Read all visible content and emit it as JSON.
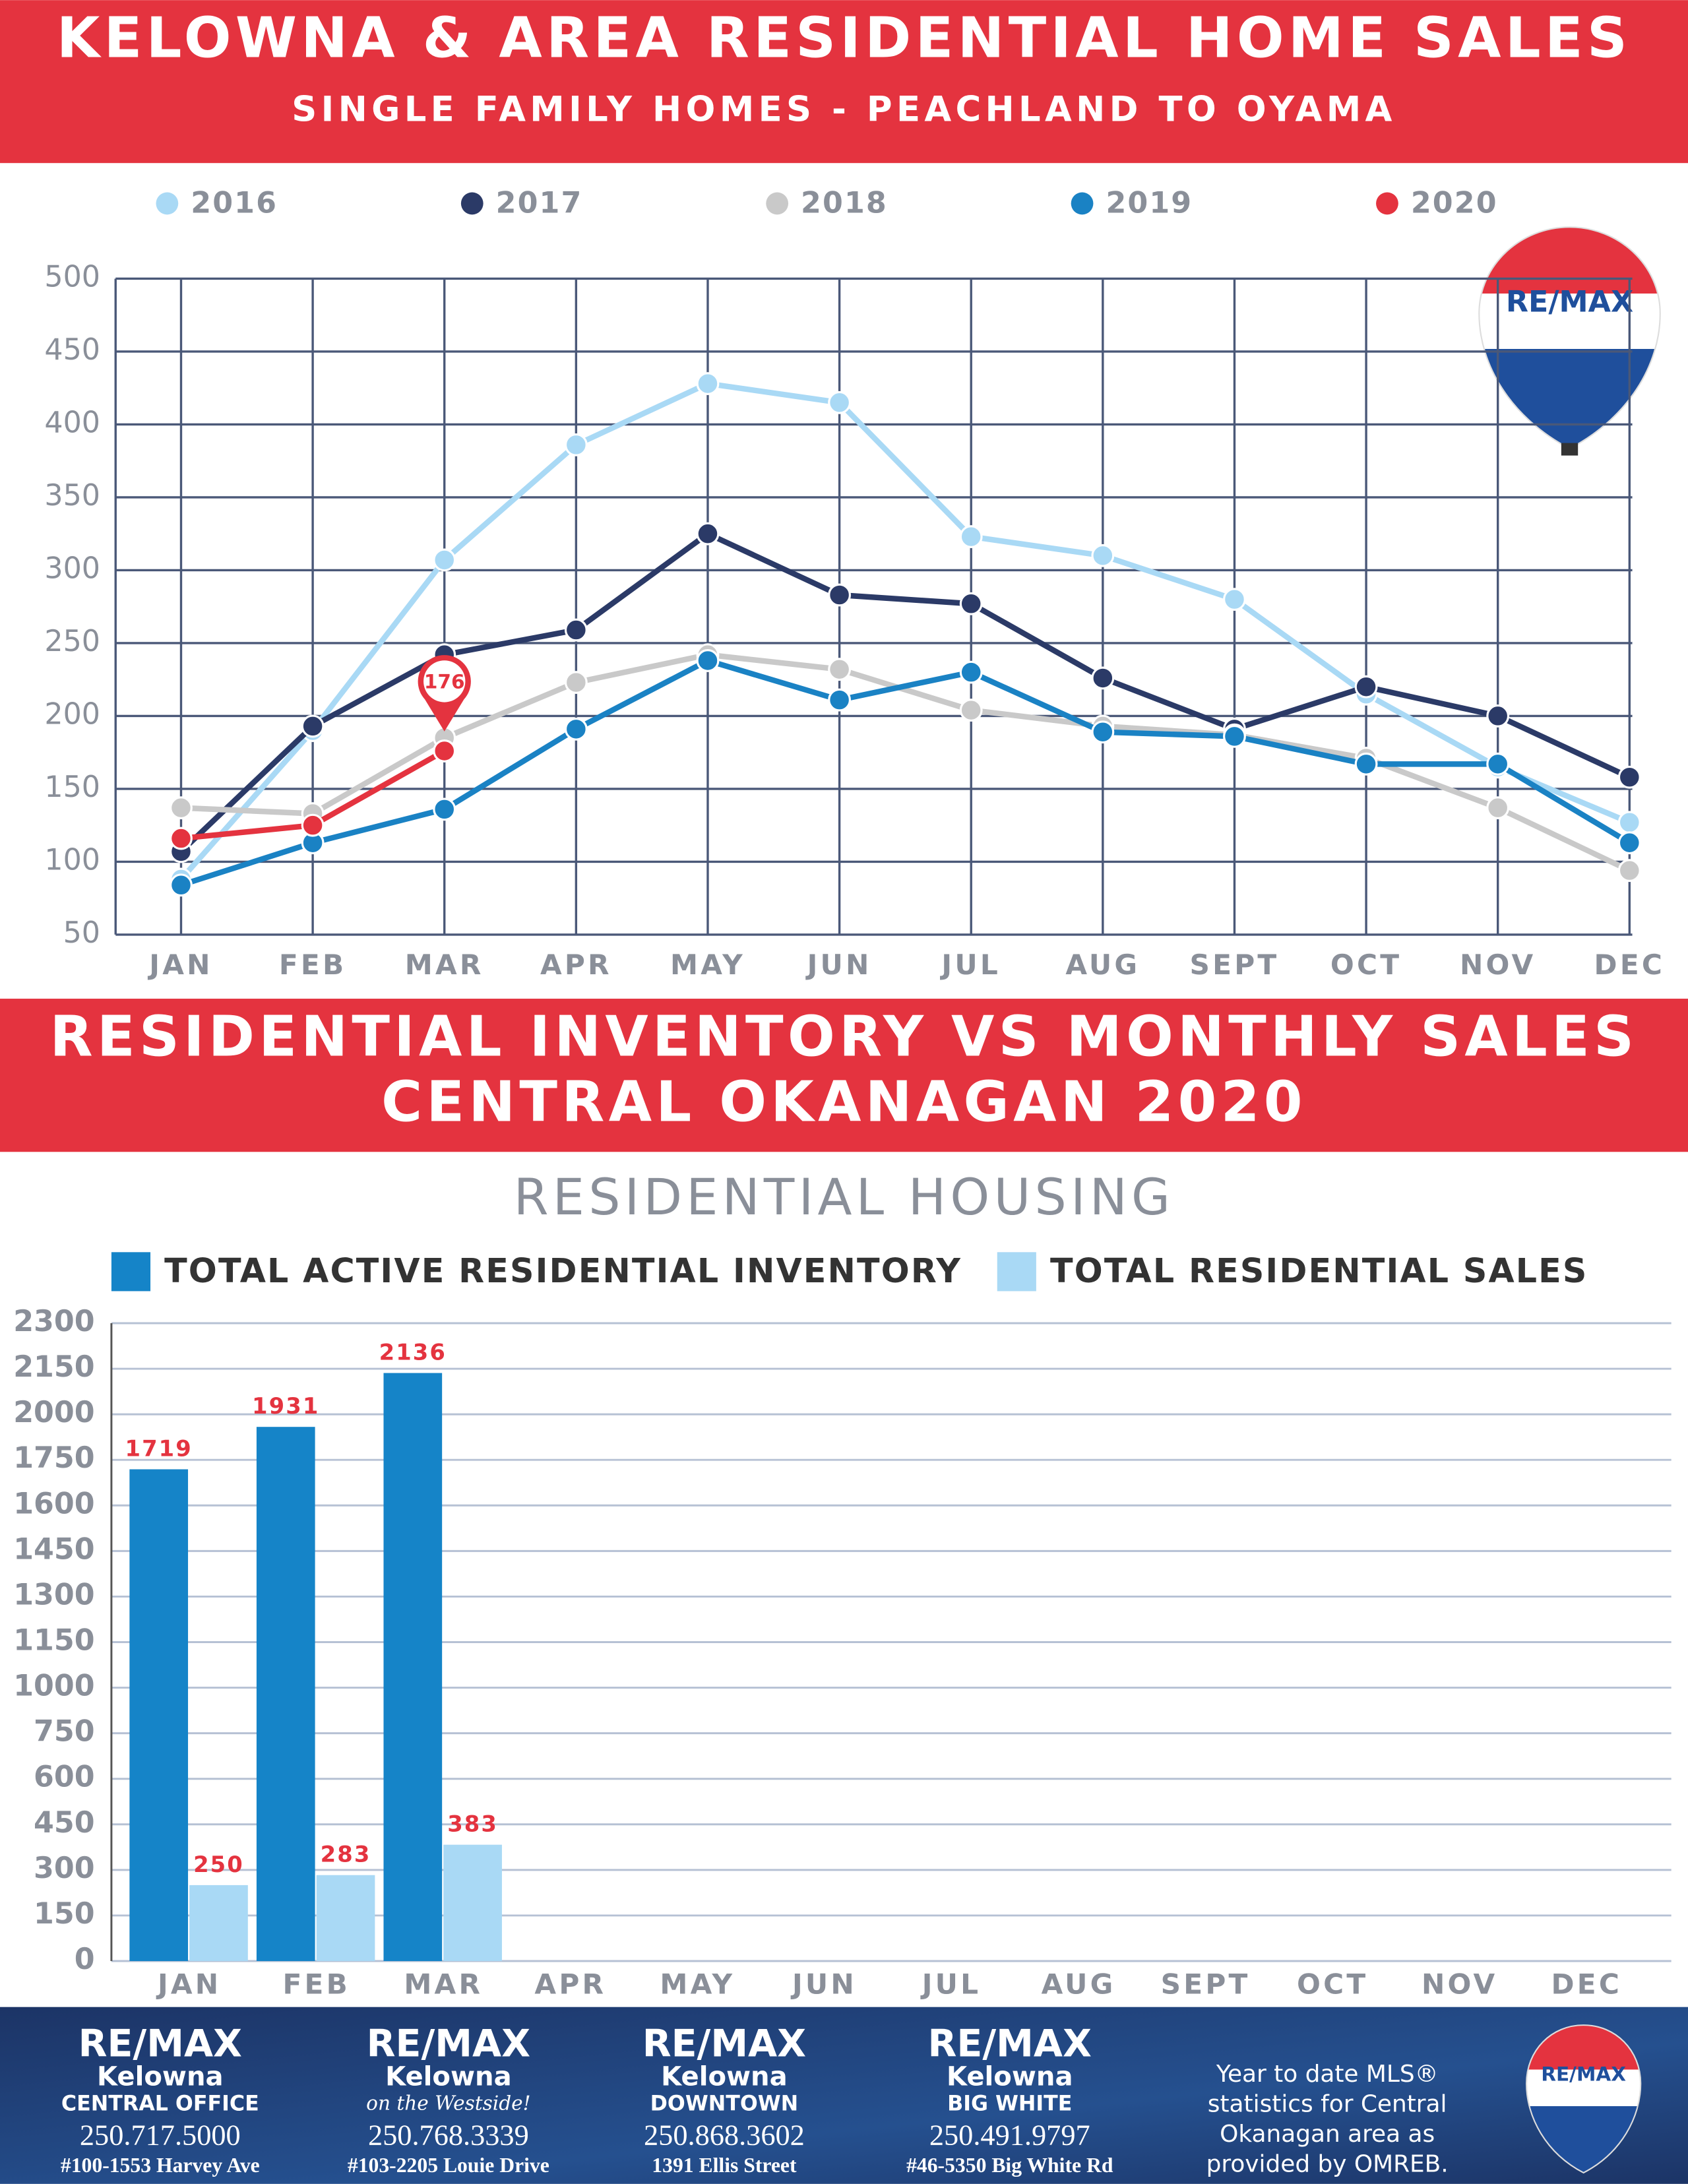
{
  "chart_data": [
    {
      "type": "line",
      "title": "KELOWNA & AREA RESIDENTIAL HOME SALES",
      "subtitle": "SINGLE FAMILY HOMES - PEACHLAND TO OYAMA",
      "categories": [
        "JAN",
        "FEB",
        "MAR",
        "APR",
        "MAY",
        "JUN",
        "JUL",
        "AUG",
        "SEPT",
        "OCT",
        "NOV",
        "DEC"
      ],
      "series": [
        {
          "name": "2016",
          "color": "#a9d9f5",
          "values": [
            88,
            190,
            307,
            386,
            428,
            415,
            323,
            310,
            280,
            215,
            165,
            127
          ]
        },
        {
          "name": "2017",
          "color": "#2b3a67",
          "values": [
            107,
            193,
            242,
            259,
            325,
            283,
            277,
            226,
            191,
            220,
            200,
            158
          ]
        },
        {
          "name": "2018",
          "color": "#c9c9c9",
          "values": [
            137,
            133,
            185,
            223,
            242,
            232,
            204,
            193,
            187,
            171,
            137,
            94
          ]
        },
        {
          "name": "2019",
          "color": "#1a82c4",
          "values": [
            84,
            113,
            136,
            191,
            238,
            211,
            230,
            189,
            186,
            167,
            167,
            113
          ]
        },
        {
          "name": "2020",
          "color": "#e4333f",
          "values": [
            116,
            125,
            176,
            null,
            null,
            null,
            null,
            null,
            null,
            null,
            null,
            null
          ],
          "value_labels": [
            null,
            null,
            "176",
            null,
            null,
            null,
            null,
            null,
            null,
            null,
            null,
            null
          ]
        }
      ],
      "ylim": [
        50,
        500
      ],
      "yticks": [
        50,
        100,
        150,
        200,
        250,
        300,
        350,
        400,
        450,
        500
      ],
      "grid": true
    },
    {
      "type": "bar",
      "title": "RESIDENTIAL INVENTORY VS MONTHLY SALES",
      "subtitle": "CENTRAL OKANAGAN 2020",
      "heading": "RESIDENTIAL HOUSING",
      "categories": [
        "JAN",
        "FEB",
        "MAR",
        "APR",
        "MAY",
        "JUN",
        "JUL",
        "AUG",
        "SEPT",
        "OCT",
        "NOV",
        "DEC"
      ],
      "series": [
        {
          "name": "TOTAL ACTIVE RESIDENTIAL INVENTORY",
          "color": "#1584c8",
          "values": [
            1719,
            1931,
            2136,
            null,
            null,
            null,
            null,
            null,
            null,
            null,
            null,
            null
          ]
        },
        {
          "name": "TOTAL RESIDENTIAL SALES",
          "color": "#a9d9f5",
          "values": [
            250,
            283,
            383,
            null,
            null,
            null,
            null,
            null,
            null,
            null,
            null,
            null
          ]
        }
      ],
      "ylim": [
        0,
        2300
      ],
      "yticks": [
        0,
        150,
        300,
        450,
        600,
        750,
        1000,
        1150,
        1300,
        1450,
        1600,
        1750,
        2000,
        2150,
        2300
      ],
      "grid": true,
      "show_values": true,
      "value_label_color": "#e4333f"
    }
  ],
  "logo": "RE/MAX",
  "footer": {
    "offices": [
      {
        "brand": "RE/MAX",
        "city": "Kelowna",
        "branch": "CENTRAL OFFICE",
        "phone": "250.717.5000",
        "address": "#100-1553 Harvey Ave"
      },
      {
        "brand": "RE/MAX",
        "city": "Kelowna",
        "branch": "on the Westside!",
        "phone": "250.768.3339",
        "address": "#103-2205 Louie Drive"
      },
      {
        "brand": "RE/MAX",
        "city": "Kelowna",
        "branch": "DOWNTOWN",
        "phone": "250.868.3602",
        "address": "1391 Ellis Street"
      },
      {
        "brand": "RE/MAX",
        "city": "Kelowna",
        "branch": "BIG WHITE",
        "phone": "250.491.9797",
        "address": "#46-5350 Big White Rd"
      }
    ],
    "note": [
      "Year to date MLS®",
      "statistics for Central",
      "Okanagan area as",
      "provided by OMREB."
    ]
  }
}
